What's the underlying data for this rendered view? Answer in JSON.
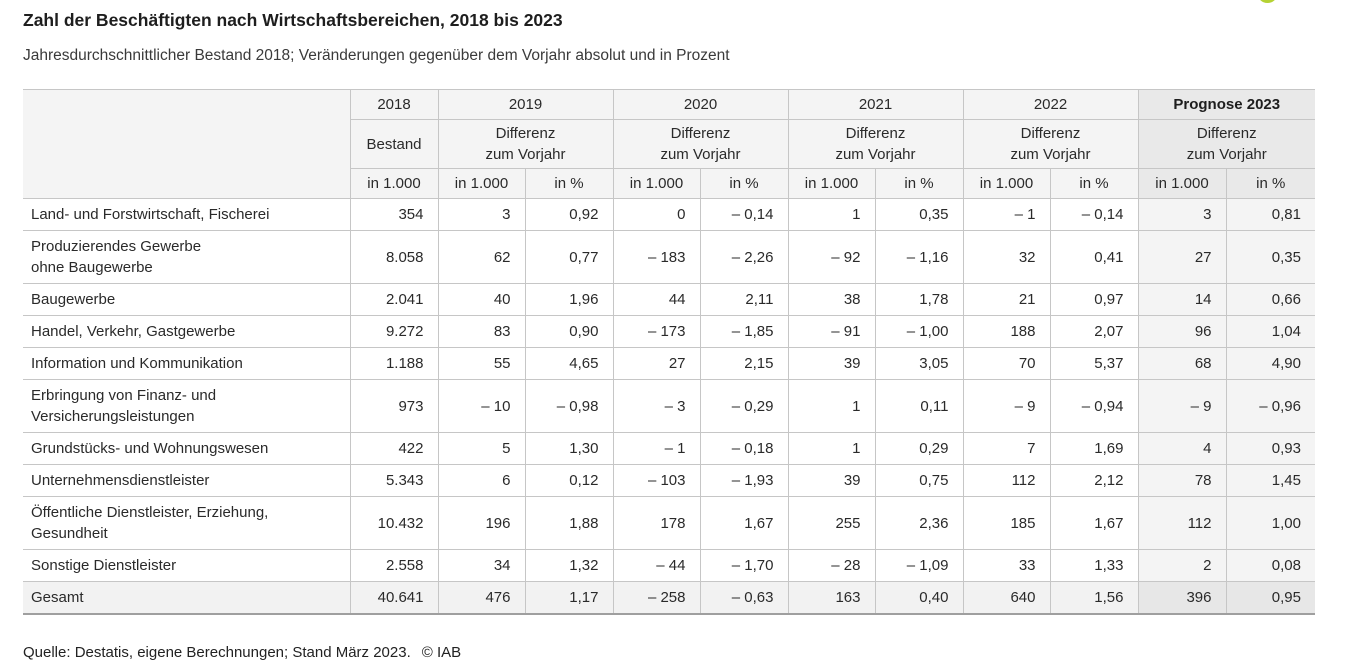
{
  "page": {
    "title": "Zahl der Beschäftigten nach Wirtschaftsbereichen, 2018 bis 2023",
    "subtitle": "Jahresdurchschnittlicher Bestand 2018; Veränderungen gegenüber dem Vorjahr absolut und in Prozent",
    "footer": {
      "source": "Quelle: Destatis, eigene Berechnungen; Stand März 2023.",
      "copyright": "© IAB"
    }
  },
  "colors": {
    "accent_green": "#b5d234",
    "header_bg": "#f4f4f4",
    "prognose_header_bg": "#e9e9e9",
    "prognose_col_bg": "#f4f4f4",
    "total_row_bg": "#f2f2f2",
    "total_prognose_bg": "#e7e7e7",
    "border": "#c6c6c6",
    "border_strong": "#9f9f9f"
  },
  "table": {
    "header": {
      "years": [
        "2018",
        "2019",
        "2020",
        "2021",
        "2022",
        "Prognose 2023"
      ],
      "bestand_label": "Bestand",
      "differenz_label": "Differenz\nzum Vorjahr",
      "units": {
        "absolute": "in 1.000",
        "percent": "in %"
      }
    },
    "rows": [
      {
        "label": "Land- und Forstwirtschaft, Fischerei",
        "values": [
          "354",
          "3",
          "0,92",
          "0",
          "– 0,14",
          "1",
          "0,35",
          "– 1",
          "– 0,14",
          "3",
          "0,81"
        ],
        "total": false
      },
      {
        "label": "Produzierendes Gewerbe\nohne Baugewerbe",
        "values": [
          "8.058",
          "62",
          "0,77",
          "– 183",
          "– 2,26",
          "– 92",
          "– 1,16",
          "32",
          "0,41",
          "27",
          "0,35"
        ],
        "total": false
      },
      {
        "label": "Baugewerbe",
        "values": [
          "2.041",
          "40",
          "1,96",
          "44",
          "2,11",
          "38",
          "1,78",
          "21",
          "0,97",
          "14",
          "0,66"
        ],
        "total": false
      },
      {
        "label": "Handel, Verkehr, Gastgewerbe",
        "values": [
          "9.272",
          "83",
          "0,90",
          "– 173",
          "– 1,85",
          "– 91",
          "– 1,00",
          "188",
          "2,07",
          "96",
          "1,04"
        ],
        "total": false
      },
      {
        "label": "Information und Kommunikation",
        "values": [
          "1.188",
          "55",
          "4,65",
          "27",
          "2,15",
          "39",
          "3,05",
          "70",
          "5,37",
          "68",
          "4,90"
        ],
        "total": false
      },
      {
        "label": "Erbringung von Finanz- und\nVersicherungsleistungen",
        "values": [
          "973",
          "– 10",
          "– 0,98",
          "– 3",
          "– 0,29",
          "1",
          "0,11",
          "– 9",
          "– 0,94",
          "– 9",
          "– 0,96"
        ],
        "total": false
      },
      {
        "label": "Grundstücks- und Wohnungswesen",
        "values": [
          "422",
          "5",
          "1,30",
          "– 1",
          "– 0,18",
          "1",
          "0,29",
          "7",
          "1,69",
          "4",
          "0,93"
        ],
        "total": false
      },
      {
        "label": "Unternehmensdienstleister",
        "values": [
          "5.343",
          "6",
          "0,12",
          "– 103",
          "– 1,93",
          "39",
          "0,75",
          "112",
          "2,12",
          "78",
          "1,45"
        ],
        "total": false
      },
      {
        "label": "Öffentliche Dienstleister, Erziehung,\nGesundheit",
        "values": [
          "10.432",
          "196",
          "1,88",
          "178",
          "1,67",
          "255",
          "2,36",
          "185",
          "1,67",
          "112",
          "1,00"
        ],
        "total": false
      },
      {
        "label": "Sonstige Dienstleister",
        "values": [
          "2.558",
          "34",
          "1,32",
          "– 44",
          "– 1,70",
          "– 28",
          "– 1,09",
          "33",
          "1,33",
          "2",
          "0,08"
        ],
        "total": false
      },
      {
        "label": "Gesamt",
        "values": [
          "40.641",
          "476",
          "1,17",
          "– 258",
          "– 0,63",
          "163",
          "0,40",
          "640",
          "1,56",
          "396",
          "0,95"
        ],
        "total": true
      }
    ]
  }
}
